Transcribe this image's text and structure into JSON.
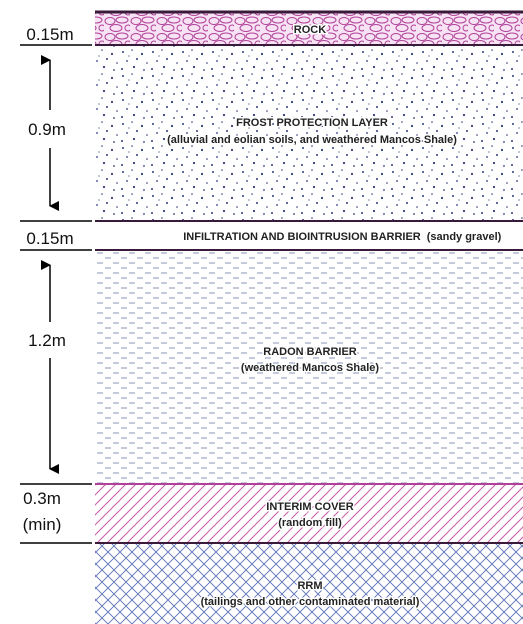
{
  "layers": [
    {
      "title": "ROCK"
    },
    {
      "title": "FROST PROTECTION LAYER",
      "subtitle": "(alluvial and eolian soils, and weathered Mancos Shale)"
    },
    {
      "title": "INFILTRATION AND BIOINTRUSION BARRIER",
      "subtitle": "(sandy gravel)"
    },
    {
      "title": "RADON BARRIER",
      "subtitle": "(weathered Mancos Shale)"
    },
    {
      "title": "INTERIM COVER",
      "subtitle": "(random fill)"
    },
    {
      "title": "RRM",
      "subtitle": "(tailings and other contaminated material)"
    }
  ],
  "dimensions": [
    {
      "label": "0.15m"
    },
    {
      "label": "0.9m"
    },
    {
      "label": "0.15m"
    },
    {
      "label": "1.2m"
    },
    {
      "label": "0.3m",
      "note": "(min)"
    }
  ]
}
